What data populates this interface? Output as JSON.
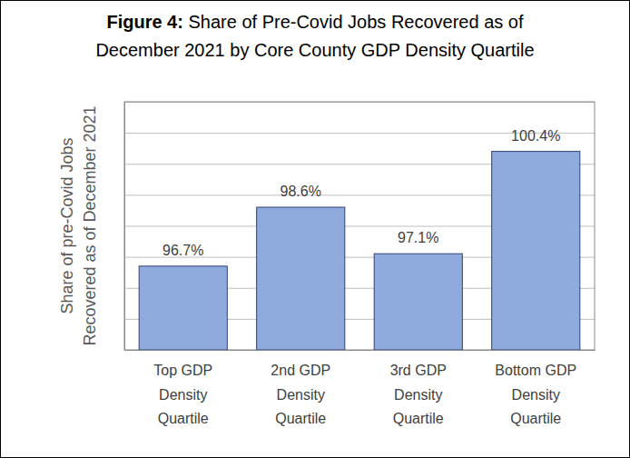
{
  "chart_data": {
    "type": "bar",
    "title": "Figure 4: Share of Pre-Covid Jobs Recovered as of December 2021 by Core County GDP Density Quartile",
    "y_label": "Share of pre-Covid Jobs Recovered as of December 2021",
    "categories": [
      "Top GDP Density Quartile",
      "2nd GDP Density Quartile",
      "3rd GDP Density Quartile",
      "Bottom GDP Density Quartile"
    ],
    "values": [
      96.7,
      98.6,
      97.1,
      100.4
    ],
    "value_labels": [
      "96.7%",
      "98.6%",
      "97.1%",
      "100.4%"
    ],
    "color": "#8faadc",
    "ylim": [
      94,
      102
    ],
    "yticks": [
      94,
      95,
      96,
      97,
      98,
      99,
      100,
      101,
      102
    ],
    "grid": true,
    "data_labels": true,
    "tick_labels": "x"
  }
}
